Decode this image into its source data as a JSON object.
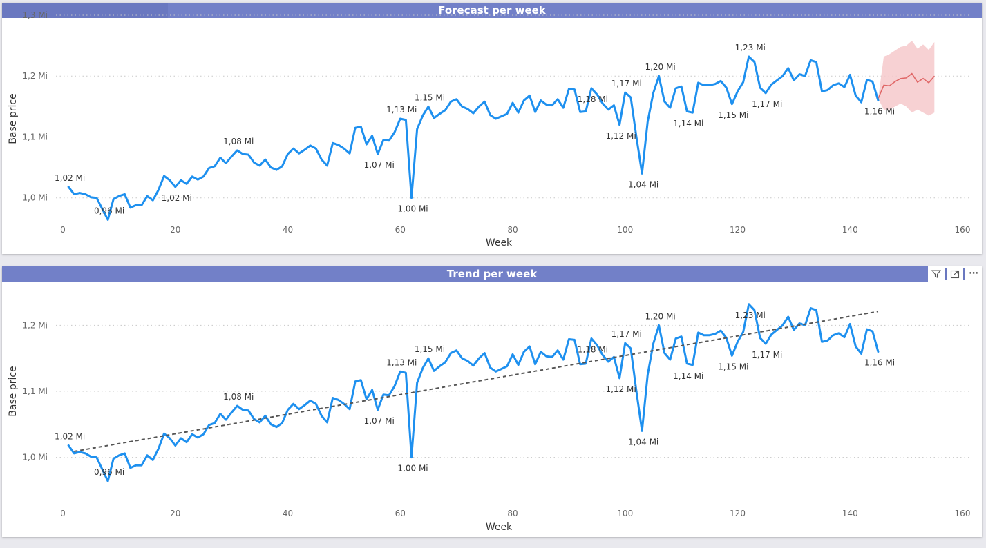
{
  "charts": [
    {
      "id": "forecast",
      "title": "Forecast per week",
      "xlabel": "Week",
      "ylabel": "Base price",
      "xlim": [
        0,
        160
      ],
      "ylim": [
        0.96,
        1.3
      ],
      "x_ticks": [
        0,
        20,
        40,
        60,
        80,
        100,
        120,
        140,
        160
      ],
      "y_ticks": [
        {
          "value": 1.0,
          "label": "1,0 Mi"
        },
        {
          "value": 1.1,
          "label": "1,1 Mi"
        },
        {
          "value": 1.2,
          "label": "1,2 Mi"
        },
        {
          "value": 1.3,
          "label": "1,3 Mi"
        }
      ],
      "grid": true,
      "show_toolbar": false
    },
    {
      "id": "trend",
      "title": "Trend per week",
      "xlabel": "Week",
      "ylabel": "Base price",
      "xlim": [
        0,
        160
      ],
      "ylim": [
        0.94,
        1.26
      ],
      "x_ticks": [
        0,
        20,
        40,
        60,
        80,
        100,
        120,
        140,
        160
      ],
      "y_ticks": [
        {
          "value": 1.0,
          "label": "1,0 Mi"
        },
        {
          "value": 1.1,
          "label": "1,1 Mi"
        },
        {
          "value": 1.2,
          "label": "1,2 Mi"
        }
      ],
      "grid": true,
      "show_toolbar": true
    }
  ],
  "toolbar": {
    "filter_icon": "filter-icon",
    "focus_icon": "focus-mode-icon",
    "more_icon": "more-options-icon",
    "more_label": "⋯"
  },
  "colors": {
    "line": "#1e90ef",
    "forecast_line": "#e06666",
    "forecast_band": "#f6c9cb",
    "trend_line": "#555555",
    "title_bar": "#7280c8"
  },
  "chart_data": [
    {
      "type": "line",
      "title": "Forecast per week",
      "xlabel": "Week",
      "ylabel": "Base price",
      "xlim": [
        0,
        160
      ],
      "ylim": [
        0.96,
        1.3
      ],
      "series": [
        {
          "name": "",
          "x": [
            1,
            2,
            3,
            4,
            5,
            6,
            7,
            8,
            9,
            10,
            11,
            12,
            13,
            14,
            15,
            16,
            17,
            18,
            19,
            20,
            21,
            22,
            23,
            24,
            25,
            26,
            27,
            28,
            29,
            30,
            31,
            32,
            33,
            34,
            35,
            36,
            37,
            38,
            39,
            40,
            41,
            42,
            43,
            44,
            45,
            46,
            47,
            48,
            49,
            50,
            51,
            52,
            53,
            54,
            55,
            56,
            57,
            58,
            59,
            60,
            61,
            62,
            63,
            64,
            65,
            66,
            67,
            68,
            69,
            70,
            71,
            72,
            73,
            74,
            75,
            76,
            77,
            78,
            79,
            80,
            81,
            82,
            83,
            84,
            85,
            86,
            87,
            88,
            89,
            90,
            91,
            92,
            93,
            94,
            95,
            96,
            97,
            98,
            99,
            100,
            101,
            102,
            103,
            104,
            105,
            106,
            107,
            108,
            109,
            110,
            111,
            112,
            113,
            114,
            115,
            116,
            117,
            118,
            119,
            120,
            121,
            122,
            123,
            124,
            125,
            126,
            127,
            128,
            129,
            130,
            131,
            132,
            133,
            134,
            135,
            136,
            137,
            138,
            139,
            140,
            141,
            142,
            143,
            144,
            145
          ],
          "y": [
            1.018,
            1.006,
            1.008,
            1.006,
            1.001,
            1.0,
            0.982,
            0.964,
            0.998,
            1.003,
            1.006,
            0.984,
            0.988,
            0.988,
            1.003,
            0.996,
            1.013,
            1.036,
            1.029,
            1.018,
            1.029,
            1.023,
            1.035,
            1.03,
            1.035,
            1.049,
            1.052,
            1.066,
            1.057,
            1.068,
            1.078,
            1.072,
            1.071,
            1.058,
            1.053,
            1.063,
            1.05,
            1.046,
            1.052,
            1.072,
            1.081,
            1.073,
            1.079,
            1.086,
            1.081,
            1.063,
            1.053,
            1.09,
            1.087,
            1.081,
            1.073,
            1.115,
            1.117,
            1.088,
            1.102,
            1.072,
            1.095,
            1.094,
            1.108,
            1.13,
            1.128,
            1.0,
            1.113,
            1.135,
            1.15,
            1.131,
            1.138,
            1.144,
            1.158,
            1.162,
            1.15,
            1.146,
            1.139,
            1.15,
            1.158,
            1.136,
            1.13,
            1.134,
            1.138,
            1.156,
            1.14,
            1.16,
            1.168,
            1.141,
            1.16,
            1.153,
            1.152,
            1.162,
            1.148,
            1.179,
            1.178,
            1.141,
            1.142,
            1.18,
            1.17,
            1.155,
            1.145,
            1.152,
            1.12,
            1.173,
            1.165,
            1.1,
            1.04,
            1.125,
            1.172,
            1.2,
            1.158,
            1.148,
            1.18,
            1.183,
            1.142,
            1.14,
            1.189,
            1.185,
            1.185,
            1.187,
            1.192,
            1.181,
            1.154,
            1.175,
            1.19,
            1.232,
            1.223,
            1.181,
            1.172,
            1.186,
            1.193,
            1.2,
            1.213,
            1.193,
            1.203,
            1.2,
            1.226,
            1.223,
            1.175,
            1.177,
            1.185,
            1.188,
            1.182,
            1.202,
            1.168,
            1.157,
            1.194,
            1.191,
            1.16
          ]
        },
        {
          "name": "",
          "kind": "forecast",
          "x": [
            145,
            146,
            147,
            148,
            149,
            150,
            151,
            152,
            153,
            154,
            155
          ],
          "y": [
            1.163,
            1.185,
            1.184,
            1.191,
            1.196,
            1.197,
            1.204,
            1.19,
            1.196,
            1.189,
            1.2
          ],
          "lower": [
            1.163,
            1.145,
            1.145,
            1.15,
            1.155,
            1.15,
            1.14,
            1.145,
            1.14,
            1.135,
            1.14
          ],
          "upper": [
            1.163,
            1.232,
            1.236,
            1.242,
            1.248,
            1.25,
            1.258,
            1.245,
            1.252,
            1.243,
            1.256
          ]
        }
      ],
      "data_labels": [
        {
          "x": 1,
          "y": 1.018,
          "text": "1,02 Mi",
          "pos": "above"
        },
        {
          "x": 8,
          "y": 0.964,
          "text": "0,96 Mi",
          "pos": "above"
        },
        {
          "x": 20,
          "y": 1.018,
          "text": "1,02 Mi",
          "pos": "below"
        },
        {
          "x": 31,
          "y": 1.078,
          "text": "1,08 Mi",
          "pos": "above"
        },
        {
          "x": 56,
          "y": 1.072,
          "text": "1,07 Mi",
          "pos": "below"
        },
        {
          "x": 60,
          "y": 1.13,
          "text": "1,13 Mi",
          "pos": "above"
        },
        {
          "x": 62,
          "y": 1.0,
          "text": "1,00 Mi",
          "pos": "below"
        },
        {
          "x": 65,
          "y": 1.15,
          "text": "1,15 Mi",
          "pos": "above"
        },
        {
          "x": 94,
          "y": 1.18,
          "text": "1,18 Mi",
          "pos": "below"
        },
        {
          "x": 99,
          "y": 1.12,
          "text": "1,12 Mi",
          "pos": "below"
        },
        {
          "x": 100,
          "y": 1.173,
          "text": "1,17 Mi",
          "pos": "above"
        },
        {
          "x": 103,
          "y": 1.04,
          "text": "1,04 Mi",
          "pos": "below"
        },
        {
          "x": 106,
          "y": 1.2,
          "text": "1,20 Mi",
          "pos": "above"
        },
        {
          "x": 111,
          "y": 1.14,
          "text": "1,14 Mi",
          "pos": "below"
        },
        {
          "x": 119,
          "y": 1.154,
          "text": "1,15 Mi",
          "pos": "below"
        },
        {
          "x": 122,
          "y": 1.232,
          "text": "1,23 Mi",
          "pos": "above"
        },
        {
          "x": 125,
          "y": 1.172,
          "text": "1,17 Mi",
          "pos": "below"
        },
        {
          "x": 145,
          "y": 1.16,
          "text": "1,16 Mi",
          "pos": "below"
        }
      ]
    },
    {
      "type": "line",
      "title": "Trend per week",
      "xlabel": "Week",
      "ylabel": "Base price",
      "xlim": [
        0,
        160
      ],
      "ylim": [
        0.94,
        1.26
      ],
      "series": [
        {
          "name": "",
          "x": [
            1,
            2,
            3,
            4,
            5,
            6,
            7,
            8,
            9,
            10,
            11,
            12,
            13,
            14,
            15,
            16,
            17,
            18,
            19,
            20,
            21,
            22,
            23,
            24,
            25,
            26,
            27,
            28,
            29,
            30,
            31,
            32,
            33,
            34,
            35,
            36,
            37,
            38,
            39,
            40,
            41,
            42,
            43,
            44,
            45,
            46,
            47,
            48,
            49,
            50,
            51,
            52,
            53,
            54,
            55,
            56,
            57,
            58,
            59,
            60,
            61,
            62,
            63,
            64,
            65,
            66,
            67,
            68,
            69,
            70,
            71,
            72,
            73,
            74,
            75,
            76,
            77,
            78,
            79,
            80,
            81,
            82,
            83,
            84,
            85,
            86,
            87,
            88,
            89,
            90,
            91,
            92,
            93,
            94,
            95,
            96,
            97,
            98,
            99,
            100,
            101,
            102,
            103,
            104,
            105,
            106,
            107,
            108,
            109,
            110,
            111,
            112,
            113,
            114,
            115,
            116,
            117,
            118,
            119,
            120,
            121,
            122,
            123,
            124,
            125,
            126,
            127,
            128,
            129,
            130,
            131,
            132,
            133,
            134,
            135,
            136,
            137,
            138,
            139,
            140,
            141,
            142,
            143,
            144,
            145
          ],
          "y": [
            1.018,
            1.006,
            1.008,
            1.006,
            1.001,
            1.0,
            0.982,
            0.964,
            0.998,
            1.003,
            1.006,
            0.984,
            0.988,
            0.988,
            1.003,
            0.996,
            1.013,
            1.036,
            1.029,
            1.018,
            1.029,
            1.023,
            1.035,
            1.03,
            1.035,
            1.049,
            1.052,
            1.066,
            1.057,
            1.068,
            1.078,
            1.072,
            1.071,
            1.058,
            1.053,
            1.063,
            1.05,
            1.046,
            1.052,
            1.072,
            1.081,
            1.073,
            1.079,
            1.086,
            1.081,
            1.063,
            1.053,
            1.09,
            1.087,
            1.081,
            1.073,
            1.115,
            1.117,
            1.088,
            1.102,
            1.072,
            1.095,
            1.094,
            1.108,
            1.13,
            1.128,
            1.0,
            1.113,
            1.135,
            1.15,
            1.131,
            1.138,
            1.144,
            1.158,
            1.162,
            1.15,
            1.146,
            1.139,
            1.15,
            1.158,
            1.136,
            1.13,
            1.134,
            1.138,
            1.156,
            1.14,
            1.16,
            1.168,
            1.141,
            1.16,
            1.153,
            1.152,
            1.162,
            1.148,
            1.179,
            1.178,
            1.141,
            1.142,
            1.18,
            1.17,
            1.155,
            1.145,
            1.152,
            1.12,
            1.173,
            1.165,
            1.1,
            1.04,
            1.125,
            1.172,
            1.2,
            1.158,
            1.148,
            1.18,
            1.183,
            1.142,
            1.14,
            1.189,
            1.185,
            1.185,
            1.187,
            1.192,
            1.181,
            1.154,
            1.175,
            1.19,
            1.232,
            1.223,
            1.181,
            1.172,
            1.186,
            1.193,
            1.2,
            1.213,
            1.193,
            1.203,
            1.2,
            1.226,
            1.223,
            1.175,
            1.177,
            1.185,
            1.188,
            1.182,
            1.202,
            1.168,
            1.157,
            1.194,
            1.191,
            1.16
          ]
        },
        {
          "name": "",
          "kind": "trend",
          "x": [
            2,
            145
          ],
          "y": [
            1.009,
            1.221
          ]
        }
      ],
      "data_labels": [
        {
          "x": 1,
          "y": 1.018,
          "text": "1,02 Mi",
          "pos": "above"
        },
        {
          "x": 8,
          "y": 0.964,
          "text": "0,96 Mi",
          "pos": "above"
        },
        {
          "x": 31,
          "y": 1.078,
          "text": "1,08 Mi",
          "pos": "above"
        },
        {
          "x": 56,
          "y": 1.072,
          "text": "1,07 Mi",
          "pos": "below"
        },
        {
          "x": 60,
          "y": 1.13,
          "text": "1,13 Mi",
          "pos": "above"
        },
        {
          "x": 62,
          "y": 1.0,
          "text": "1,00 Mi",
          "pos": "below"
        },
        {
          "x": 65,
          "y": 1.15,
          "text": "1,15 Mi",
          "pos": "above"
        },
        {
          "x": 94,
          "y": 1.18,
          "text": "1,18 Mi",
          "pos": "below"
        },
        {
          "x": 99,
          "y": 1.12,
          "text": "1,12 Mi",
          "pos": "below"
        },
        {
          "x": 100,
          "y": 1.173,
          "text": "1,17 Mi",
          "pos": "above"
        },
        {
          "x": 103,
          "y": 1.04,
          "text": "1,04 Mi",
          "pos": "below"
        },
        {
          "x": 106,
          "y": 1.2,
          "text": "1,20 Mi",
          "pos": "above"
        },
        {
          "x": 111,
          "y": 1.14,
          "text": "1,14 Mi",
          "pos": "below"
        },
        {
          "x": 119,
          "y": 1.154,
          "text": "1,15 Mi",
          "pos": "below"
        },
        {
          "x": 122,
          "y": 1.232,
          "text": "1,23 Mi",
          "pos": "below"
        },
        {
          "x": 125,
          "y": 1.172,
          "text": "1,17 Mi",
          "pos": "below"
        },
        {
          "x": 145,
          "y": 1.16,
          "text": "1,16 Mi",
          "pos": "below"
        }
      ]
    }
  ]
}
